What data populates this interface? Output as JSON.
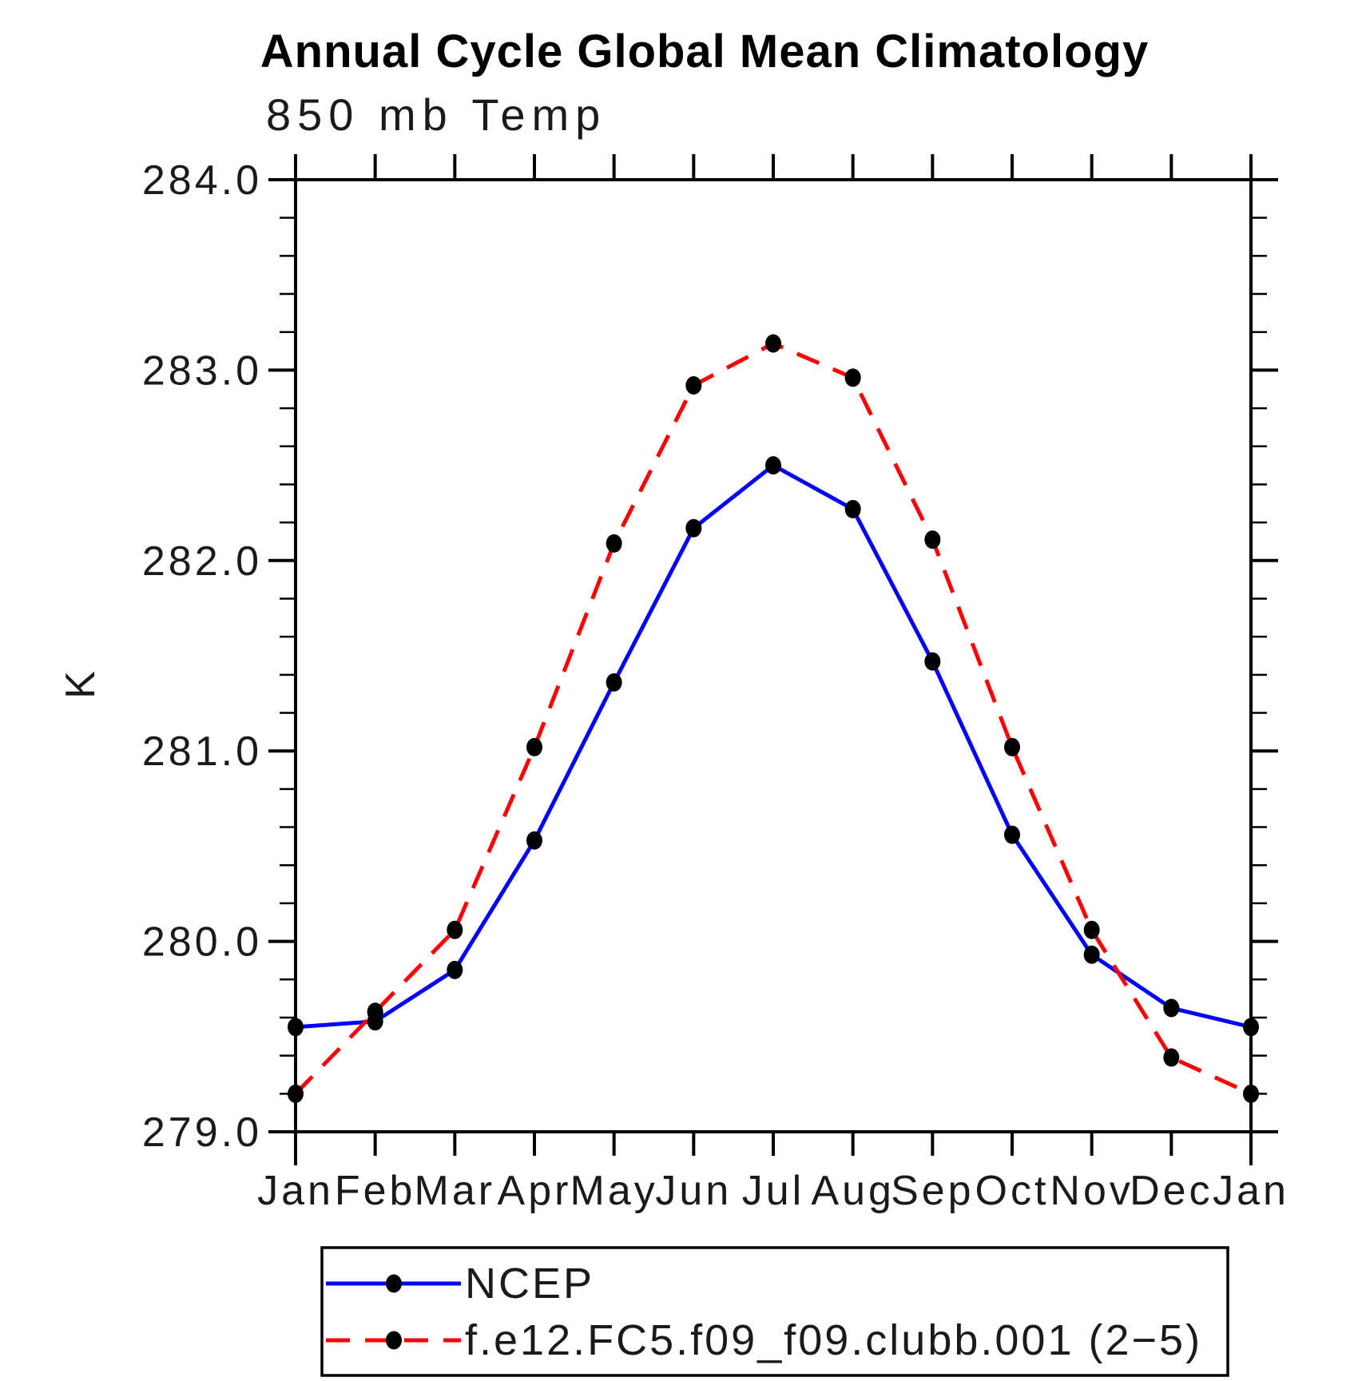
{
  "chart_data": {
    "type": "line",
    "title": "Annual Cycle Global Mean Climatology",
    "subtitle": "850 mb Temp",
    "ylabel": "K",
    "categories": [
      "Jan",
      "Feb",
      "Mar",
      "Apr",
      "May",
      "Jun",
      "Jul",
      "Aug",
      "Sep",
      "Oct",
      "Nov",
      "Dec",
      "Jan"
    ],
    "ylim": [
      279.0,
      284.0
    ],
    "yticks": [
      {
        "value": 279.0,
        "label": "279.0"
      },
      {
        "value": 280.0,
        "label": "280.0"
      },
      {
        "value": 281.0,
        "label": "281.0"
      },
      {
        "value": 282.0,
        "label": "282.0"
      },
      {
        "value": 283.0,
        "label": "283.0"
      },
      {
        "value": 284.0,
        "label": "284.0"
      }
    ],
    "ytick_minor_interval": 0.2,
    "grid": false,
    "legend_position": "bottom-left-box",
    "marker": "filled-black-dot",
    "series": [
      {
        "name": "NCEP",
        "color": "#0000ff",
        "style": "solid",
        "marker_color": "#000000",
        "values": [
          279.55,
          279.58,
          279.85,
          280.53,
          281.36,
          282.17,
          282.5,
          282.27,
          281.47,
          280.56,
          279.93,
          279.65,
          279.55
        ]
      },
      {
        "name": "f.e12.FC5.f09_f09.clubb.001 (2−5)",
        "color": "#ff0000",
        "style": "dashed",
        "marker_color": "#000000",
        "values": [
          279.2,
          279.63,
          280.06,
          281.02,
          282.09,
          282.92,
          283.14,
          282.96,
          282.11,
          281.02,
          280.06,
          279.39,
          279.2
        ]
      }
    ]
  }
}
